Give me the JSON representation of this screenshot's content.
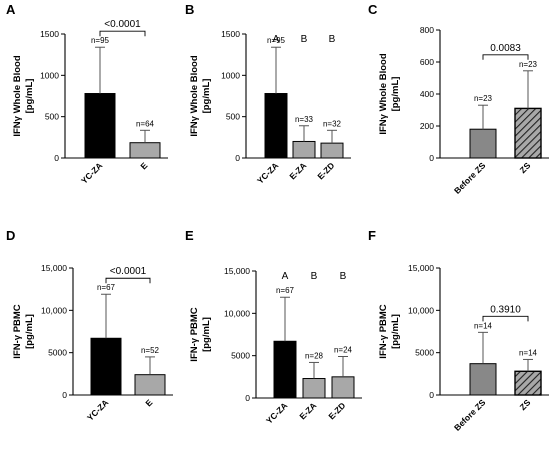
{
  "chart_data": [
    {
      "type": "bar",
      "panel": "A",
      "ylabel": [
        "IFNγ Whole Blood",
        "[pg/mL]"
      ],
      "ylim": [
        0,
        1500
      ],
      "yticks": [
        0,
        500,
        1000,
        1500
      ],
      "ytick_labels": [
        "0",
        "500",
        "1000",
        "1500"
      ],
      "categories": [
        "YC-ZA",
        "E"
      ],
      "values": [
        780,
        185
      ],
      "errors": [
        560,
        150
      ],
      "n_labels": [
        "n=95",
        "n=64"
      ],
      "colors": [
        "#000000",
        "#a8a8a8"
      ],
      "hatched": [
        false,
        false
      ],
      "pvalue": "<0.0001",
      "group_letters": []
    },
    {
      "type": "bar",
      "panel": "B",
      "ylabel": [
        "IFNγ Whole Blood",
        "[pg/mL]"
      ],
      "ylim": [
        0,
        1500
      ],
      "yticks": [
        0,
        500,
        1000,
        1500
      ],
      "ytick_labels": [
        "0",
        "500",
        "1000",
        "1500"
      ],
      "categories": [
        "YC-ZA",
        "E-ZA",
        "E-ZD"
      ],
      "values": [
        780,
        200,
        180
      ],
      "errors": [
        560,
        190,
        155
      ],
      "n_labels": [
        "n=95",
        "n=33",
        "n=32"
      ],
      "colors": [
        "#000000",
        "#a8a8a8",
        "#a8a8a8"
      ],
      "hatched": [
        false,
        false,
        false
      ],
      "pvalue": "",
      "group_letters": [
        "A",
        "B",
        "B"
      ]
    },
    {
      "type": "bar",
      "panel": "C",
      "ylabel": [
        "IFNγ Whole Blood",
        "[pg/mL]"
      ],
      "ylim": [
        0,
        800
      ],
      "yticks": [
        0,
        200,
        400,
        600,
        800
      ],
      "ytick_labels": [
        "0",
        "200",
        "400",
        "600",
        "800"
      ],
      "categories": [
        "Before ZS",
        "ZS"
      ],
      "values": [
        180,
        310
      ],
      "errors": [
        150,
        235
      ],
      "n_labels": [
        "n=23",
        "n=23"
      ],
      "colors": [
        "#888888",
        "#a8a8a8"
      ],
      "hatched": [
        false,
        true
      ],
      "pvalue": "0.0083",
      "group_letters": []
    },
    {
      "type": "bar",
      "panel": "D",
      "ylabel": [
        "IFN-γ PBMC",
        "[pg/mL]"
      ],
      "ylim": [
        0,
        15000
      ],
      "yticks": [
        0,
        5000,
        10000,
        15000
      ],
      "ytick_labels": [
        "0",
        "5000",
        "10,000",
        "15,000"
      ],
      "categories": [
        "YC-ZA",
        "E"
      ],
      "values": [
        6700,
        2400
      ],
      "errors": [
        5200,
        2100
      ],
      "n_labels": [
        "n=67",
        "n=52"
      ],
      "colors": [
        "#000000",
        "#a8a8a8"
      ],
      "hatched": [
        false,
        false
      ],
      "pvalue": "<0.0001",
      "group_letters": []
    },
    {
      "type": "bar",
      "panel": "E",
      "ylabel": [
        "IFN-γ PBMC",
        "[pg/mL]"
      ],
      "ylim": [
        0,
        15000
      ],
      "yticks": [
        0,
        5000,
        10000,
        15000
      ],
      "ytick_labels": [
        "0",
        "5000",
        "10,000",
        "15,000"
      ],
      "categories": [
        "YC-ZA",
        "E-ZA",
        "E-ZD"
      ],
      "values": [
        6700,
        2300,
        2500
      ],
      "errors": [
        5200,
        1900,
        2400
      ],
      "n_labels": [
        "n=67",
        "n=28",
        "n=24"
      ],
      "colors": [
        "#000000",
        "#a8a8a8",
        "#a8a8a8"
      ],
      "hatched": [
        false,
        false,
        false
      ],
      "pvalue": "",
      "group_letters": [
        "A",
        "B",
        "B"
      ]
    },
    {
      "type": "bar",
      "panel": "F",
      "ylabel": [
        "IFN-γ PBMC",
        "[pg/mL]"
      ],
      "ylim": [
        0,
        15000
      ],
      "yticks": [
        0,
        5000,
        10000,
        15000
      ],
      "ytick_labels": [
        "0",
        "5000",
        "10,000",
        "15,000"
      ],
      "categories": [
        "Before ZS",
        "ZS"
      ],
      "values": [
        3700,
        2800
      ],
      "errors": [
        3700,
        1400
      ],
      "n_labels": [
        "n=14",
        "n=14"
      ],
      "colors": [
        "#888888",
        "#a8a8a8"
      ],
      "hatched": [
        false,
        true
      ],
      "pvalue": "0.3910",
      "group_letters": []
    }
  ]
}
